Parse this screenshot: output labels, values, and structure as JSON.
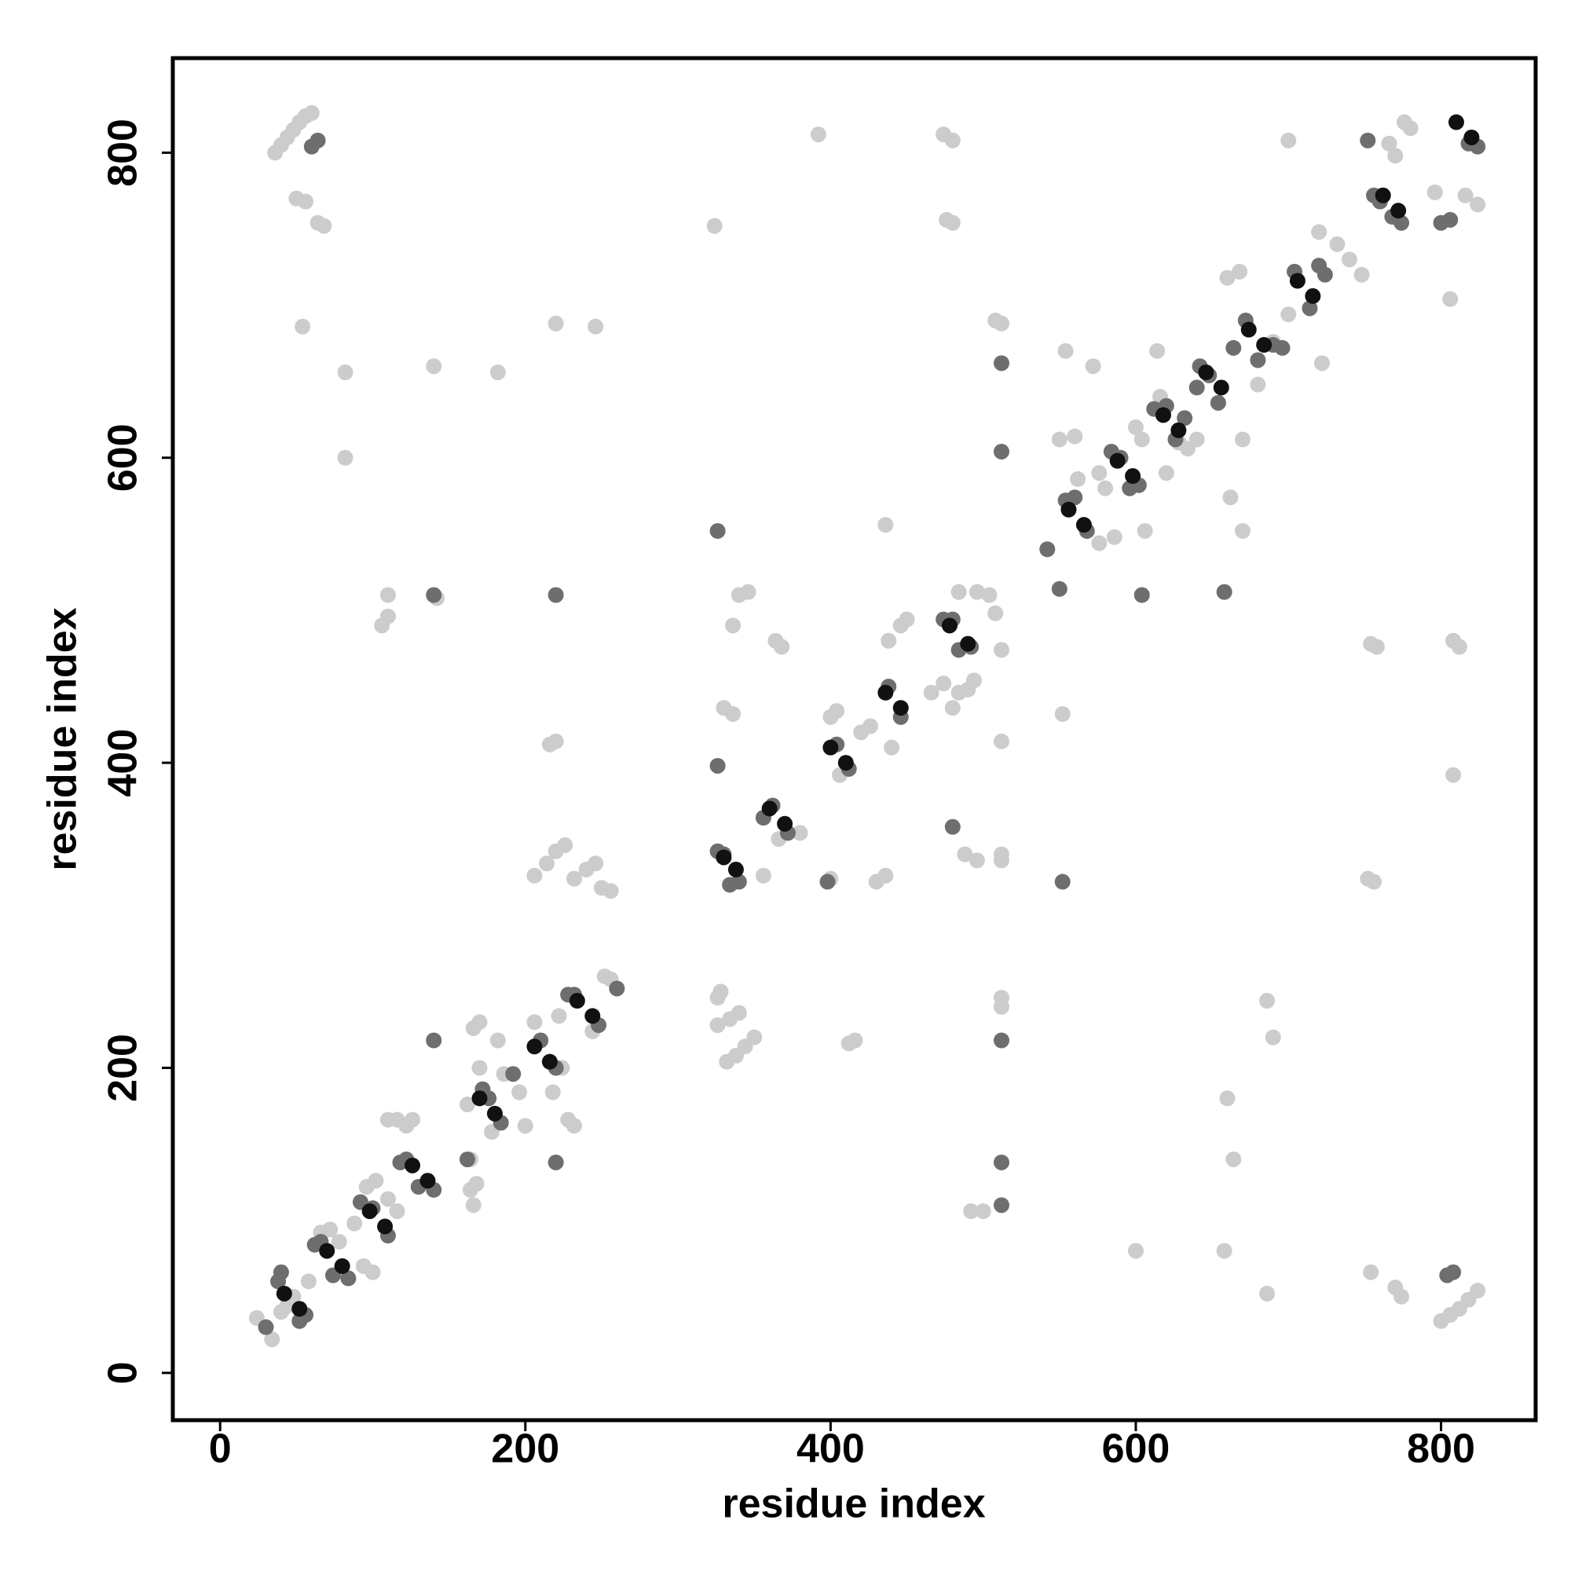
{
  "chart_data": {
    "type": "scatter",
    "xlabel": "residue index",
    "ylabel": "residue index",
    "xlim": [
      -31,
      862
    ],
    "ylim": [
      -31,
      862
    ],
    "xticks": [
      0,
      200,
      400,
      600,
      800
    ],
    "yticks": [
      0,
      200,
      400,
      600,
      800
    ],
    "series": [
      {
        "color": "#cccccc",
        "x": [
          36,
          40,
          44,
          48,
          52,
          56,
          60,
          50,
          56,
          64,
          68,
          54,
          82,
          82,
          110,
          106,
          110,
          142,
          140,
          182,
          220,
          246,
          392,
          474,
          480,
          324,
          476,
          480,
          508,
          512,
          554,
          572,
          614,
          700,
          668,
          660,
          806,
          808,
          812,
          808,
          754,
          758,
          752,
          756,
          754,
          770,
          774,
          800,
          806,
          812,
          818,
          824,
          686,
          690,
          686,
          660,
          664,
          658,
          600,
          492,
          500,
          512,
          512,
          512,
          512,
          512,
          508,
          484,
          496,
          504,
          412,
          416,
          326,
          334,
          340,
          332,
          338,
          344,
          350,
          206,
          214,
          220,
          226,
          232,
          240,
          246,
          216,
          220,
          250,
          256,
          340,
          336,
          346,
          364,
          368,
          356,
          336,
          330,
          400,
          430,
          436,
          438,
          446,
          450,
          466,
          474,
          480,
          484,
          490,
          494,
          488,
          496,
          512,
          552,
          550,
          560,
          562,
          576,
          586,
          606,
          620,
          628,
          640,
          662,
          670,
          670,
          690,
          722,
          720,
          732,
          740,
          748,
          770,
          766,
          776,
          780,
          796,
          816,
          824,
          436,
          24,
          34,
          40,
          44,
          48,
          58,
          66,
          72,
          78,
          88,
          94,
          100,
          96,
          102,
          110,
          116,
          116,
          122,
          126,
          110,
          164,
          164,
          166,
          168,
          162,
          170,
          166,
          170,
          178,
          182,
          186,
          196,
          200,
          206,
          218,
          224,
          228,
          232,
          222,
          244,
          252,
          256,
          326,
          328,
          600,
          604,
          616,
          634,
          680,
          700,
          400,
          404,
          420,
          426,
          440,
          580,
          576,
          366,
          380,
          406
        ],
        "y": [
          800,
          805,
          810,
          815,
          820,
          824,
          826,
          770,
          768,
          754,
          752,
          686,
          656,
          600,
          510,
          490,
          496,
          508,
          660,
          656,
          688,
          686,
          812,
          812,
          808,
          752,
          756,
          754,
          690,
          688,
          670,
          660,
          670,
          808,
          722,
          718,
          704,
          480,
          476,
          392,
          478,
          476,
          324,
          322,
          66,
          56,
          50,
          34,
          38,
          42,
          48,
          54,
          244,
          220,
          52,
          180,
          140,
          80,
          80,
          106,
          106,
          246,
          240,
          340,
          414,
          474,
          498,
          512,
          512,
          510,
          216,
          218,
          228,
          232,
          236,
          204,
          208,
          214,
          220,
          326,
          334,
          342,
          346,
          324,
          330,
          334,
          412,
          414,
          318,
          316,
          510,
          490,
          512,
          480,
          476,
          326,
          432,
          436,
          324,
          322,
          326,
          480,
          490,
          494,
          446,
          452,
          436,
          446,
          448,
          454,
          340,
          336,
          336,
          432,
          612,
          614,
          586,
          544,
          548,
          552,
          590,
          610,
          612,
          574,
          552,
          612,
          676,
          662,
          748,
          740,
          730,
          720,
          798,
          806,
          820,
          816,
          774,
          772,
          766,
          556,
          36,
          22,
          40,
          44,
          50,
          60,
          92,
          94,
          86,
          98,
          70,
          66,
          122,
          126,
          114,
          106,
          166,
          162,
          166,
          166,
          140,
          120,
          110,
          124,
          176,
          200,
          226,
          230,
          158,
          218,
          196,
          184,
          162,
          230,
          184,
          200,
          166,
          162,
          234,
          224,
          260,
          258,
          246,
          250,
          620,
          612,
          640,
          606,
          648,
          694,
          430,
          434,
          420,
          424,
          410,
          580,
          590,
          350,
          354,
          392
        ]
      },
      {
        "color": "#6e6e6e",
        "x": [
          30,
          38,
          40,
          52,
          56,
          62,
          66,
          74,
          84,
          92,
          100,
          110,
          118,
          122,
          130,
          140,
          140,
          140,
          64,
          60,
          162,
          172,
          176,
          184,
          192,
          210,
          220,
          220,
          228,
          232,
          248,
          220,
          260,
          326,
          326,
          330,
          334,
          340,
          326,
          356,
          362,
          372,
          398,
          404,
          412,
          438,
          446,
          474,
          480,
          484,
          492,
          512,
          512,
          512,
          512,
          512,
          542,
          550,
          554,
          560,
          568,
          552,
          584,
          590,
          596,
          602,
          604,
          612,
          620,
          626,
          632,
          640,
          642,
          648,
          654,
          658,
          664,
          672,
          680,
          690,
          696,
          704,
          714,
          720,
          724,
          756,
          760,
          774,
          752,
          768,
          800,
          806,
          804,
          808,
          818,
          824,
          480
        ],
        "y": [
          30,
          60,
          66,
          34,
          38,
          84,
          86,
          64,
          62,
          112,
          108,
          90,
          138,
          140,
          122,
          120,
          218,
          510,
          808,
          804,
          140,
          186,
          180,
          164,
          196,
          218,
          200,
          138,
          248,
          248,
          228,
          510,
          252,
          552,
          342,
          340,
          320,
          322,
          398,
          364,
          372,
          354,
          322,
          412,
          396,
          450,
          430,
          494,
          494,
          474,
          476,
          604,
          662,
          218,
          138,
          110,
          540,
          514,
          572,
          574,
          552,
          322,
          604,
          600,
          580,
          582,
          510,
          632,
          634,
          612,
          626,
          646,
          660,
          654,
          636,
          512,
          672,
          690,
          664,
          674,
          672,
          722,
          698,
          726,
          720,
          772,
          768,
          754,
          808,
          758,
          754,
          756,
          64,
          66,
          806,
          804,
          358
        ]
      },
      {
        "color": "#111111",
        "x": [
          42,
          52,
          70,
          80,
          98,
          108,
          126,
          136,
          170,
          180,
          206,
          216,
          234,
          244,
          330,
          338,
          360,
          370,
          400,
          410,
          436,
          446,
          478,
          490,
          556,
          566,
          588,
          598,
          618,
          628,
          646,
          656,
          674,
          684,
          706,
          716,
          762,
          772,
          810,
          820
        ],
        "y": [
          52,
          42,
          80,
          70,
          106,
          96,
          136,
          126,
          180,
          170,
          214,
          204,
          244,
          234,
          338,
          330,
          370,
          360,
          410,
          400,
          446,
          436,
          490,
          478,
          566,
          556,
          598,
          588,
          628,
          618,
          656,
          646,
          684,
          674,
          716,
          706,
          772,
          762,
          820,
          810
        ]
      }
    ]
  }
}
